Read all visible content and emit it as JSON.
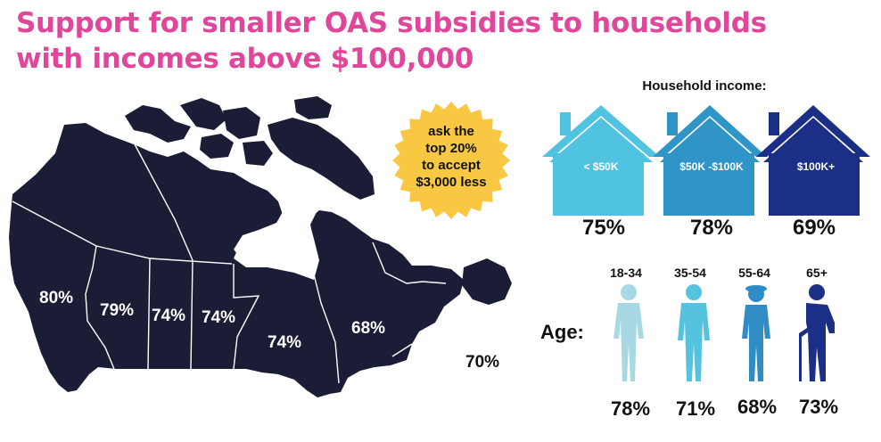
{
  "title": {
    "line1": "Support for smaller OAS subsidies to households",
    "line2": "with incomes above $100,000"
  },
  "badge": {
    "lines": [
      "ask the",
      "top 20%",
      "to accept",
      "$3,000 less"
    ],
    "color": "#f9c842"
  },
  "colors": {
    "title": "#e0479a",
    "map": "#1b1d36",
    "house_low": "#4fc3e0",
    "house_mid": "#2f95c7",
    "house_high": "#1c2f86"
  },
  "chart_data": [
    {
      "type": "map",
      "title": "",
      "regions": [
        {
          "label": "80%",
          "value": 80
        },
        {
          "label": "79%",
          "value": 79
        },
        {
          "label": "74%",
          "value": 74
        },
        {
          "label": "74%",
          "value": 74
        },
        {
          "label": "74%",
          "value": 74
        },
        {
          "label": "68%",
          "value": 68
        },
        {
          "label": "70%",
          "value": 70
        }
      ]
    },
    {
      "type": "bar",
      "title": "Household income:",
      "categories": [
        "< $50K",
        "$50K -$100K",
        "$100K+"
      ],
      "values": [
        75,
        78,
        69
      ],
      "labels": [
        "75%",
        "78%",
        "69%"
      ],
      "icon": "house-icon"
    },
    {
      "type": "bar",
      "title": "Age:",
      "categories": [
        "18-34",
        "35-54",
        "55-64",
        "65+"
      ],
      "values": [
        78,
        71,
        68,
        73
      ],
      "labels": [
        "78%",
        "71%",
        "68%",
        "73%"
      ],
      "icon": "person-icon"
    }
  ]
}
